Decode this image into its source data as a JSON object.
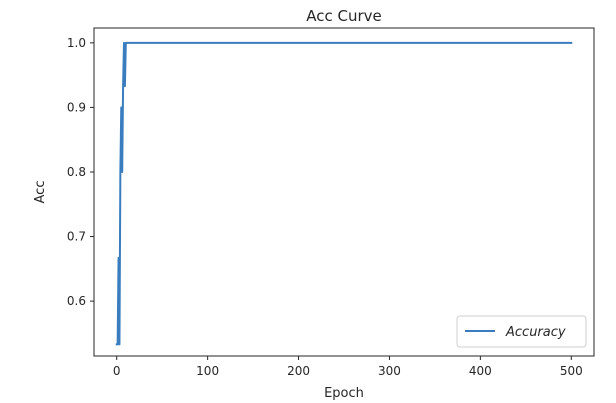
{
  "chart_data": {
    "type": "line",
    "title": "Acc Curve",
    "xlabel": "Epoch",
    "ylabel": "Acc",
    "xlim": [
      -25,
      525
    ],
    "ylim": [
      0.515,
      1.023
    ],
    "x_ticks": [
      0,
      100,
      200,
      300,
      400,
      500
    ],
    "x_tick_labels": [
      "0",
      "100",
      "200",
      "300",
      "400",
      "500"
    ],
    "y_ticks": [
      0.6,
      0.7,
      0.8,
      0.9,
      1.0
    ],
    "y_tick_labels": [
      "0.6",
      "0.7",
      "0.8",
      "0.9",
      "1.0"
    ],
    "grid": false,
    "legend_position": "lower-right",
    "series_color": "#3a7dbf",
    "series": [
      {
        "name": "Accuracy",
        "x": [
          0,
          1,
          2,
          3,
          4,
          5,
          6,
          7,
          8,
          9,
          10,
          11,
          20,
          50,
          100,
          200,
          300,
          400,
          500
        ],
        "y": [
          0.533,
          0.533,
          0.667,
          0.533,
          0.8,
          0.9,
          0.8,
          0.933,
          1.0,
          0.933,
          1.0,
          1.0,
          1.0,
          1.0,
          1.0,
          1.0,
          1.0,
          1.0,
          1.0
        ]
      }
    ]
  }
}
